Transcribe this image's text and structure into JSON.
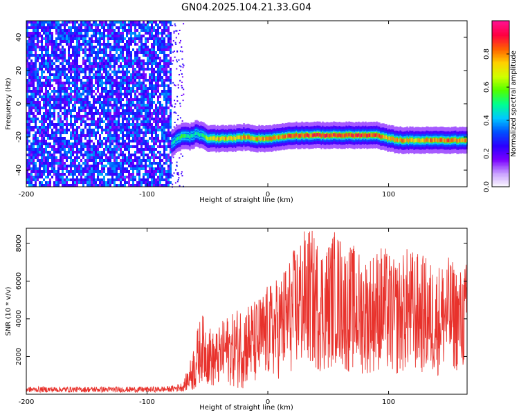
{
  "figure_title": "GN04.2025.104.21.33.G04",
  "chart_data": [
    {
      "type": "heatmap",
      "xlabel": "Height of straight line (km)",
      "ylabel": "Frequency (Hz)",
      "xlim": [
        -200,
        165
      ],
      "ylim": [
        -50,
        50
      ],
      "xticks": [
        -200,
        -100,
        0,
        100
      ],
      "yticks": [
        -40,
        -20,
        0,
        20,
        40
      ],
      "grid": false,
      "colorbar": {
        "label": "Normalized spectral amplitude",
        "range": [
          0,
          1
        ],
        "ticks": [
          "0.0",
          "0.2",
          "0.4",
          "0.6",
          "0.8"
        ],
        "colormap": [
          "#ffffff",
          "#c8a0ff",
          "#7a00ff",
          "#2a00ff",
          "#0050ff",
          "#00c8ff",
          "#00ff90",
          "#50ff00",
          "#d0ff00",
          "#ffd000",
          "#ff6000",
          "#ff0040",
          "#ff1090"
        ]
      },
      "noise_region": {
        "x_start": -200,
        "x_end": -80,
        "level": 0.35
      },
      "track": {
        "x": [
          -80,
          -75,
          -70,
          -65,
          -60,
          -55,
          -50,
          -45,
          -40,
          -30,
          -20,
          -10,
          0,
          10,
          20,
          30,
          40,
          50,
          60,
          70,
          80,
          90,
          100,
          110,
          120,
          130,
          140,
          150,
          160,
          165
        ],
        "y": [
          -24,
          -21,
          -19,
          -20,
          -18,
          -19,
          -21,
          -21,
          -21,
          -21,
          -20,
          -21,
          -21,
          -20,
          -19,
          -19,
          -19,
          -19,
          -19,
          -19,
          -19,
          -19,
          -21,
          -22,
          -22,
          -22,
          -22,
          -22,
          -22,
          -22
        ],
        "peak_amplitude": [
          0.45,
          0.55,
          0.6,
          0.55,
          0.5,
          0.55,
          0.7,
          0.8,
          0.85,
          0.8,
          0.85,
          0.85,
          0.85,
          0.85,
          0.9,
          0.9,
          0.95,
          0.95,
          0.95,
          0.95,
          0.95,
          0.9,
          0.8,
          0.85,
          0.8,
          0.85,
          0.9,
          0.9,
          0.85,
          0.85
        ]
      }
    },
    {
      "type": "line",
      "xlabel": "Height of straight line (km)",
      "ylabel": "SNR (10 * v/v)",
      "xlim": [
        -200,
        165
      ],
      "ylim": [
        0,
        8800
      ],
      "xticks": [
        -200,
        -100,
        0,
        100
      ],
      "yticks": [
        2000,
        4000,
        6000,
        8000
      ],
      "grid": false,
      "color": "#e8322c",
      "series": [
        {
          "x": [
            -200,
            -180,
            -160,
            -140,
            -120,
            -100,
            -90,
            -80,
            -70,
            -65,
            -60,
            -55,
            -50,
            -45,
            -40,
            -35,
            -30,
            -25,
            -20,
            -15,
            -10,
            -5,
            0,
            5,
            10,
            15,
            20,
            25,
            30,
            35,
            40,
            45,
            50,
            55,
            60,
            65,
            70,
            75,
            80,
            85,
            90,
            95,
            100,
            105,
            110,
            115,
            120,
            125,
            130,
            135,
            140,
            145,
            150,
            155,
            160,
            165
          ],
          "y": [
            250,
            250,
            250,
            250,
            250,
            250,
            260,
            280,
            400,
            900,
            1600,
            2500,
            2200,
            1800,
            2000,
            2400,
            2300,
            2500,
            2600,
            2800,
            2700,
            3000,
            3300,
            3400,
            3600,
            4000,
            4300,
            4800,
            5000,
            5200,
            4800,
            4600,
            4700,
            5200,
            5000,
            4500,
            4600,
            4400,
            4200,
            4300,
            4500,
            4600,
            4300,
            4000,
            4200,
            4500,
            4400,
            4300,
            4200,
            4000,
            3900,
            4200,
            4300,
            4100,
            3900,
            4300
          ],
          "amplitude": [
            150,
            150,
            150,
            150,
            150,
            150,
            150,
            160,
            250,
            700,
            1500,
            1800,
            1700,
            1500,
            1600,
            1800,
            1900,
            2200,
            2300,
            2200,
            2300,
            2400,
            2500,
            2600,
            2800,
            3000,
            3200,
            3500,
            3700,
            3700,
            3600,
            3500,
            3500,
            3600,
            3500,
            3400,
            3400,
            3300,
            3200,
            3200,
            3300,
            3400,
            3300,
            3100,
            3200,
            3300,
            3300,
            3200,
            3200,
            3100,
            3000,
            3000,
            3000,
            2900,
            2800,
            2800
          ]
        }
      ]
    }
  ]
}
